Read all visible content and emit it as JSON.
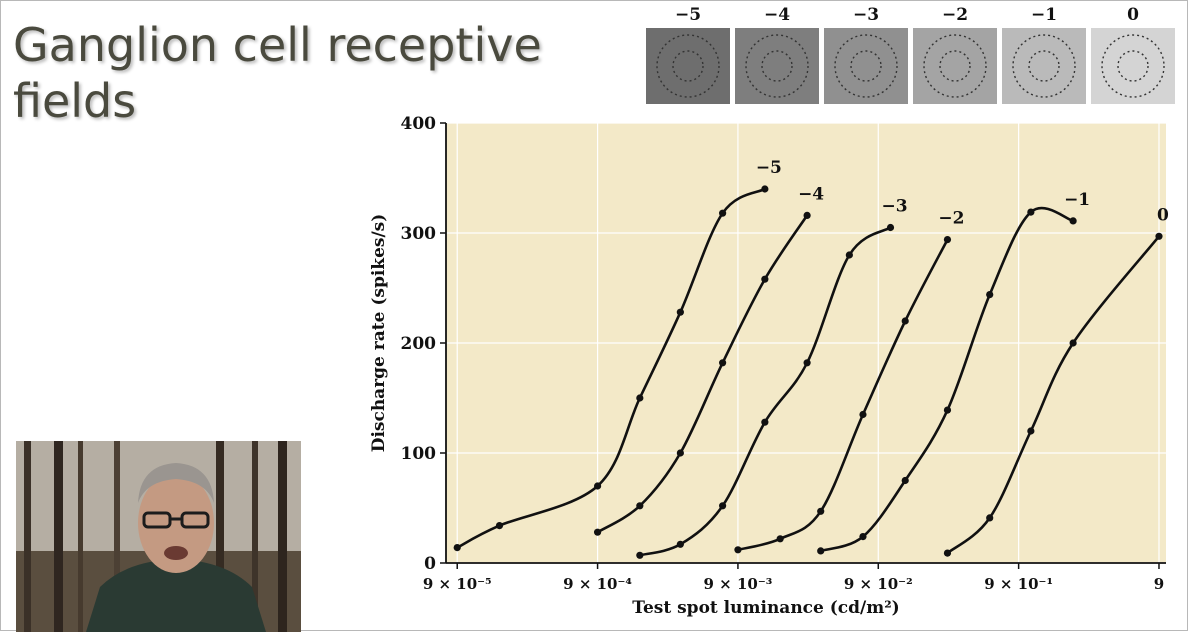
{
  "slide": {
    "title": "Ganglion cell receptive fields"
  },
  "swatches": [
    {
      "label": "−5",
      "color": "#6e6e6e"
    },
    {
      "label": "−4",
      "color": "#7e7e7e"
    },
    {
      "label": "−3",
      "color": "#909090"
    },
    {
      "label": "−2",
      "color": "#a4a4a4"
    },
    {
      "label": "−1",
      "color": "#bababa"
    },
    {
      "label": "0",
      "color": "#d4d4d4"
    }
  ],
  "chart_data": {
    "type": "line",
    "xlabel": "Test spot luminance (cd/m²)",
    "ylabel": "Discharge rate (spikes/s)",
    "ylim": [
      0,
      400
    ],
    "y_ticks": [
      "0",
      "100",
      "200",
      "300",
      "400"
    ],
    "x_scale": "log",
    "x_ticks": [
      {
        "value": 9e-05,
        "label": "9 × 10⁻⁵"
      },
      {
        "value": 0.0009,
        "label": "9 × 10⁻⁴"
      },
      {
        "value": 0.009,
        "label": "9 × 10⁻³"
      },
      {
        "value": 0.09,
        "label": "9 × 10⁻²"
      },
      {
        "value": 0.9,
        "label": "9 × 10⁻¹"
      },
      {
        "value": 9,
        "label": "9"
      }
    ],
    "background": "#f3e9c8",
    "grid": true,
    "series": [
      {
        "name": "−5",
        "points": [
          [
            9e-05,
            14
          ],
          [
            0.00018,
            34
          ],
          [
            0.0009,
            70
          ],
          [
            0.0018,
            150
          ],
          [
            0.0035,
            228
          ],
          [
            0.007,
            318
          ],
          [
            0.014,
            340
          ]
        ]
      },
      {
        "name": "−4",
        "points": [
          [
            0.0009,
            28
          ],
          [
            0.0018,
            52
          ],
          [
            0.0035,
            100
          ],
          [
            0.007,
            182
          ],
          [
            0.014,
            258
          ],
          [
            0.028,
            316
          ]
        ]
      },
      {
        "name": "−3",
        "points": [
          [
            0.0018,
            7
          ],
          [
            0.0035,
            17
          ],
          [
            0.007,
            52
          ],
          [
            0.014,
            128
          ],
          [
            0.028,
            182
          ],
          [
            0.056,
            280
          ],
          [
            0.11,
            305
          ]
        ]
      },
      {
        "name": "−2",
        "points": [
          [
            0.009,
            12
          ],
          [
            0.018,
            22
          ],
          [
            0.035,
            47
          ],
          [
            0.07,
            135
          ],
          [
            0.14,
            220
          ],
          [
            0.28,
            294
          ]
        ]
      },
      {
        "name": "−1",
        "points": [
          [
            0.035,
            11
          ],
          [
            0.07,
            24
          ],
          [
            0.14,
            75
          ],
          [
            0.28,
            139
          ],
          [
            0.56,
            244
          ],
          [
            1.1,
            319
          ],
          [
            2.2,
            311
          ]
        ]
      },
      {
        "name": "0",
        "points": [
          [
            0.28,
            9
          ],
          [
            0.56,
            41
          ],
          [
            1.1,
            120
          ],
          [
            2.2,
            200
          ],
          [
            9,
            297
          ]
        ]
      }
    ]
  }
}
